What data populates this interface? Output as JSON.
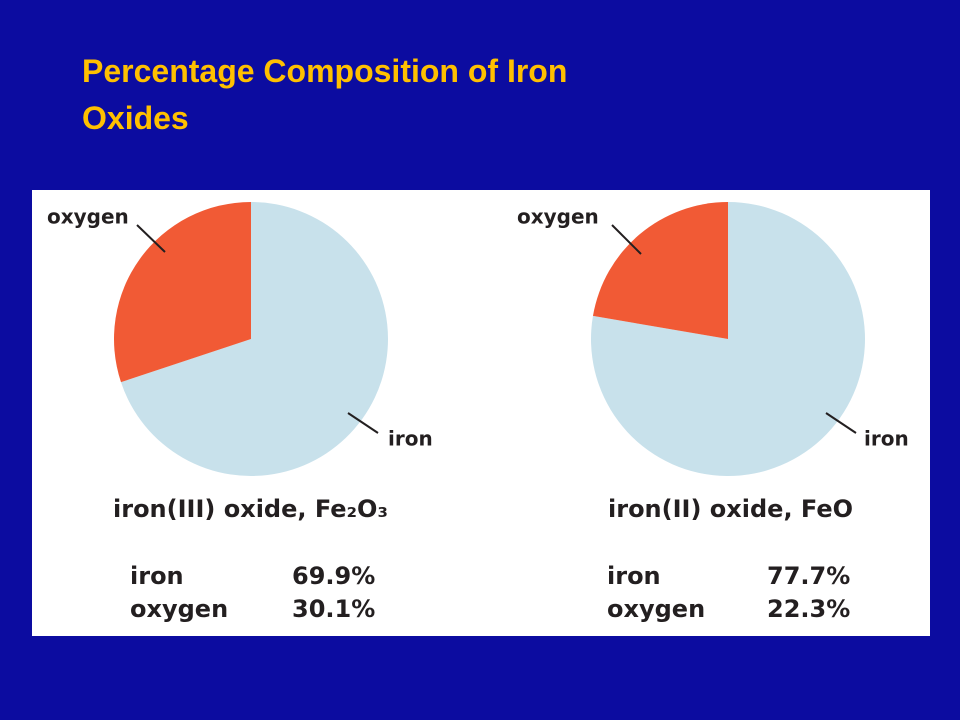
{
  "title": "Percentage Composition of Iron Oxides",
  "chart_data": [
    {
      "type": "pie",
      "title": "iron(III) oxide, Fe₂O₃",
      "categories": [
        "iron",
        "oxygen"
      ],
      "values": [
        69.9,
        30.1
      ],
      "value_labels": [
        "69.9%",
        "30.1%"
      ],
      "colors": [
        "#c8e1eb",
        "#f15a35"
      ]
    },
    {
      "type": "pie",
      "title": "iron(II) oxide, FeO",
      "categories": [
        "iron",
        "oxygen"
      ],
      "values": [
        77.7,
        22.3
      ],
      "value_labels": [
        "77.7%",
        "22.3%"
      ],
      "colors": [
        "#c8e1eb",
        "#f15a35"
      ]
    }
  ]
}
